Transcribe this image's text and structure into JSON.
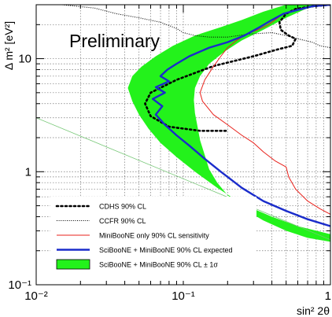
{
  "chart_data": {
    "type": "line",
    "annotation": "Preliminary",
    "xlabel": "sin² 2θ",
    "ylabel": "Δ m² [eV²]",
    "xlim": [
      0.01,
      1
    ],
    "ylim": [
      0.1,
      30
    ],
    "x_scale": "log",
    "y_scale": "log",
    "grid": "dotted",
    "legend_position": "bottom-left",
    "x_ticks": [
      {
        "value": 0.01,
        "label": "10⁻²"
      },
      {
        "value": 0.1,
        "label": "10⁻¹"
      },
      {
        "value": 1,
        "label": "1"
      }
    ],
    "y_ticks": [
      {
        "value": 0.1,
        "label": "10⁻¹"
      },
      {
        "value": 1,
        "label": "1"
      },
      {
        "value": 10,
        "label": "10"
      }
    ],
    "series": [
      {
        "name": "CDHS 90% CL",
        "style": "dotted-thick",
        "color": "#000000",
        "points": [
          [
            1.0,
            30
          ],
          [
            0.75,
            29
          ],
          [
            0.58,
            27.5
          ],
          [
            0.5,
            25
          ],
          [
            0.45,
            21
          ],
          [
            0.46,
            18
          ],
          [
            0.52,
            16
          ],
          [
            0.58,
            15
          ],
          [
            0.55,
            13
          ],
          [
            0.43,
            12
          ],
          [
            0.3,
            10.5
          ],
          [
            0.16,
            8.6
          ],
          [
            0.09,
            6.5
          ],
          [
            0.06,
            5
          ],
          [
            0.055,
            4
          ],
          [
            0.06,
            3.1
          ],
          [
            0.08,
            2.5
          ],
          [
            0.13,
            2.3
          ],
          [
            0.2,
            2.3
          ]
        ]
      },
      {
        "name": "CCFR 90% CL",
        "style": "dotted-thin",
        "color": "#000000",
        "points": [
          [
            0.015,
            30
          ],
          [
            0.025,
            28
          ],
          [
            0.035,
            25
          ],
          [
            0.05,
            23
          ],
          [
            0.07,
            21
          ],
          [
            0.09,
            18.5
          ],
          [
            0.1,
            17
          ],
          [
            0.12,
            16
          ],
          [
            0.15,
            15.5
          ],
          [
            0.2,
            15.5
          ],
          [
            0.28,
            16.5
          ],
          [
            0.4,
            17
          ],
          [
            0.5,
            16
          ],
          [
            0.6,
            15
          ],
          [
            0.75,
            14
          ],
          [
            0.85,
            13
          ],
          [
            1.0,
            12.5
          ]
        ]
      },
      {
        "name": "MiniBooNE only 90% CL sensitivity",
        "style": "solid-thin",
        "color": "#e8211b",
        "points": [
          [
            1.0,
            30
          ],
          [
            0.8,
            29.5
          ],
          [
            0.65,
            28
          ],
          [
            0.55,
            26.5
          ],
          [
            0.47,
            24.5
          ],
          [
            0.42,
            22
          ],
          [
            0.38,
            20
          ],
          [
            0.32,
            18
          ],
          [
            0.27,
            16.5
          ],
          [
            0.23,
            14.5
          ],
          [
            0.2,
            12.5
          ],
          [
            0.18,
            10.5
          ],
          [
            0.16,
            8.5
          ],
          [
            0.14,
            6.5
          ],
          [
            0.13,
            5
          ],
          [
            0.135,
            4.2
          ],
          [
            0.16,
            3.2
          ],
          [
            0.2,
            2.6
          ],
          [
            0.25,
            2.1
          ],
          [
            0.3,
            1.8
          ],
          [
            0.35,
            1.5
          ],
          [
            0.42,
            1.25
          ],
          [
            0.5,
            1.1
          ],
          [
            0.52,
            0.9
          ],
          [
            0.58,
            0.7
          ],
          [
            0.7,
            0.55
          ],
          [
            0.85,
            0.47
          ],
          [
            1.0,
            0.42
          ]
        ]
      },
      {
        "name": "SciBooNE + MiniBooNE 90% CL expected",
        "style": "solid-thick",
        "color": "#1a2ccb",
        "points": [
          [
            1.0,
            30
          ],
          [
            0.75,
            29
          ],
          [
            0.6,
            27
          ],
          [
            0.48,
            25
          ],
          [
            0.4,
            22
          ],
          [
            0.33,
            19
          ],
          [
            0.26,
            16
          ],
          [
            0.2,
            14
          ],
          [
            0.15,
            12.5
          ],
          [
            0.11,
            10.5
          ],
          [
            0.09,
            9
          ],
          [
            0.078,
            8
          ],
          [
            0.07,
            7
          ],
          [
            0.08,
            6.3
          ],
          [
            0.065,
            5.6
          ],
          [
            0.075,
            5
          ],
          [
            0.062,
            4.4
          ],
          [
            0.072,
            3.8
          ],
          [
            0.065,
            3.2
          ],
          [
            0.075,
            2.6
          ],
          [
            0.09,
            2.1
          ],
          [
            0.11,
            1.7
          ],
          [
            0.14,
            1.3
          ],
          [
            0.18,
            1.0
          ],
          [
            0.25,
            0.72
          ],
          [
            0.35,
            0.55
          ],
          [
            0.5,
            0.45
          ],
          [
            0.7,
            0.38
          ],
          [
            1.0,
            0.33
          ]
        ]
      },
      {
        "name": "SciBooNE + MiniBooNE 90% CL ± 1σ",
        "style": "band",
        "color": "#23f21b",
        "upper": [
          [
            1.0,
            30
          ],
          [
            0.5,
            30
          ],
          [
            0.35,
            26
          ],
          [
            0.25,
            22
          ],
          [
            0.18,
            19
          ],
          [
            0.12,
            16
          ],
          [
            0.085,
            13
          ],
          [
            0.065,
            10.5
          ],
          [
            0.052,
            8.5
          ],
          [
            0.045,
            7
          ],
          [
            0.042,
            5.5
          ],
          [
            0.045,
            4.2
          ],
          [
            0.05,
            3.2
          ],
          [
            0.058,
            2.4
          ],
          [
            0.07,
            1.8
          ],
          [
            0.09,
            1.35
          ],
          [
            0.12,
            1.0
          ],
          [
            0.17,
            0.72
          ],
          [
            0.25,
            0.52
          ],
          [
            0.4,
            0.4
          ],
          [
            0.6,
            0.33
          ],
          [
            1.0,
            0.28
          ]
        ],
        "lower": [
          [
            1.0,
            0.24
          ],
          [
            0.7,
            0.26
          ],
          [
            0.5,
            0.3
          ],
          [
            0.35,
            0.37
          ],
          [
            0.25,
            0.48
          ],
          [
            0.2,
            0.62
          ],
          [
            0.17,
            0.8
          ],
          [
            0.15,
            1.05
          ],
          [
            0.14,
            1.4
          ],
          [
            0.13,
            1.9
          ],
          [
            0.125,
            2.5
          ],
          [
            0.12,
            3.3
          ],
          [
            0.118,
            4.3
          ],
          [
            0.12,
            5.5
          ],
          [
            0.13,
            7
          ],
          [
            0.15,
            9
          ],
          [
            0.19,
            11.5
          ],
          [
            0.25,
            14.5
          ],
          [
            0.35,
            18
          ],
          [
            0.5,
            23
          ],
          [
            0.7,
            28
          ],
          [
            1.0,
            30
          ]
        ]
      }
    ],
    "diagonal_line": {
      "name": "",
      "color": "#76c776",
      "points": [
        [
          0.01,
          3
        ],
        [
          1,
          0.25
        ]
      ]
    },
    "legend": [
      {
        "label": "CDHS 90% CL",
        "key": "cdhs"
      },
      {
        "label": "CCFR 90% CL",
        "key": "ccfr"
      },
      {
        "label": "MiniBooNE only 90% CL sensitivity",
        "key": "mb"
      },
      {
        "label": "SciBooNE + MiniBooNE 90% CL expected",
        "key": "sbmb"
      },
      {
        "label": "SciBooNE + MiniBooNE 90% CL ± 1σ",
        "key": "band"
      }
    ]
  }
}
